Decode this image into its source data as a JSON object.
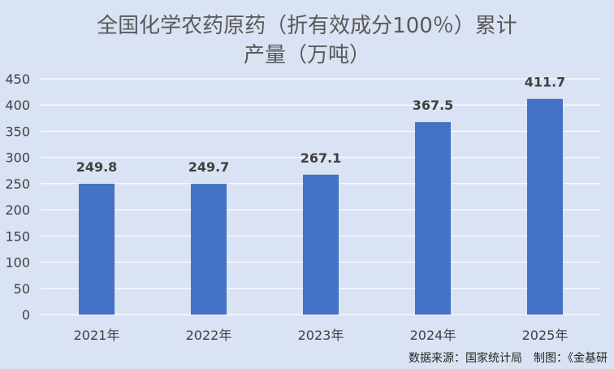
{
  "title_line1": "全国化学农药原药（折有效成分100％）累计",
  "title_line2": "产量（万吨）",
  "source_note": "数据来源：国家统计局　制图：《金基研",
  "colors": {
    "background": "#dae3f3",
    "bar": "#4472c4",
    "gridline": "#ffffff",
    "text": "#404040"
  },
  "chart_data": {
    "type": "bar",
    "categories": [
      "2021年",
      "2022年",
      "2023年",
      "2024年",
      "2025年"
    ],
    "values": [
      249.8,
      249.7,
      267.1,
      367.5,
      411.7
    ],
    "value_labels": [
      "249.8",
      "249.7",
      "267.1",
      "367.5",
      "411.7"
    ],
    "ylim": [
      0,
      450
    ],
    "yticks": [
      0,
      50,
      100,
      150,
      200,
      250,
      300,
      350,
      400,
      450
    ],
    "grid": true,
    "legend": "none",
    "xlabel": "",
    "ylabel": ""
  }
}
